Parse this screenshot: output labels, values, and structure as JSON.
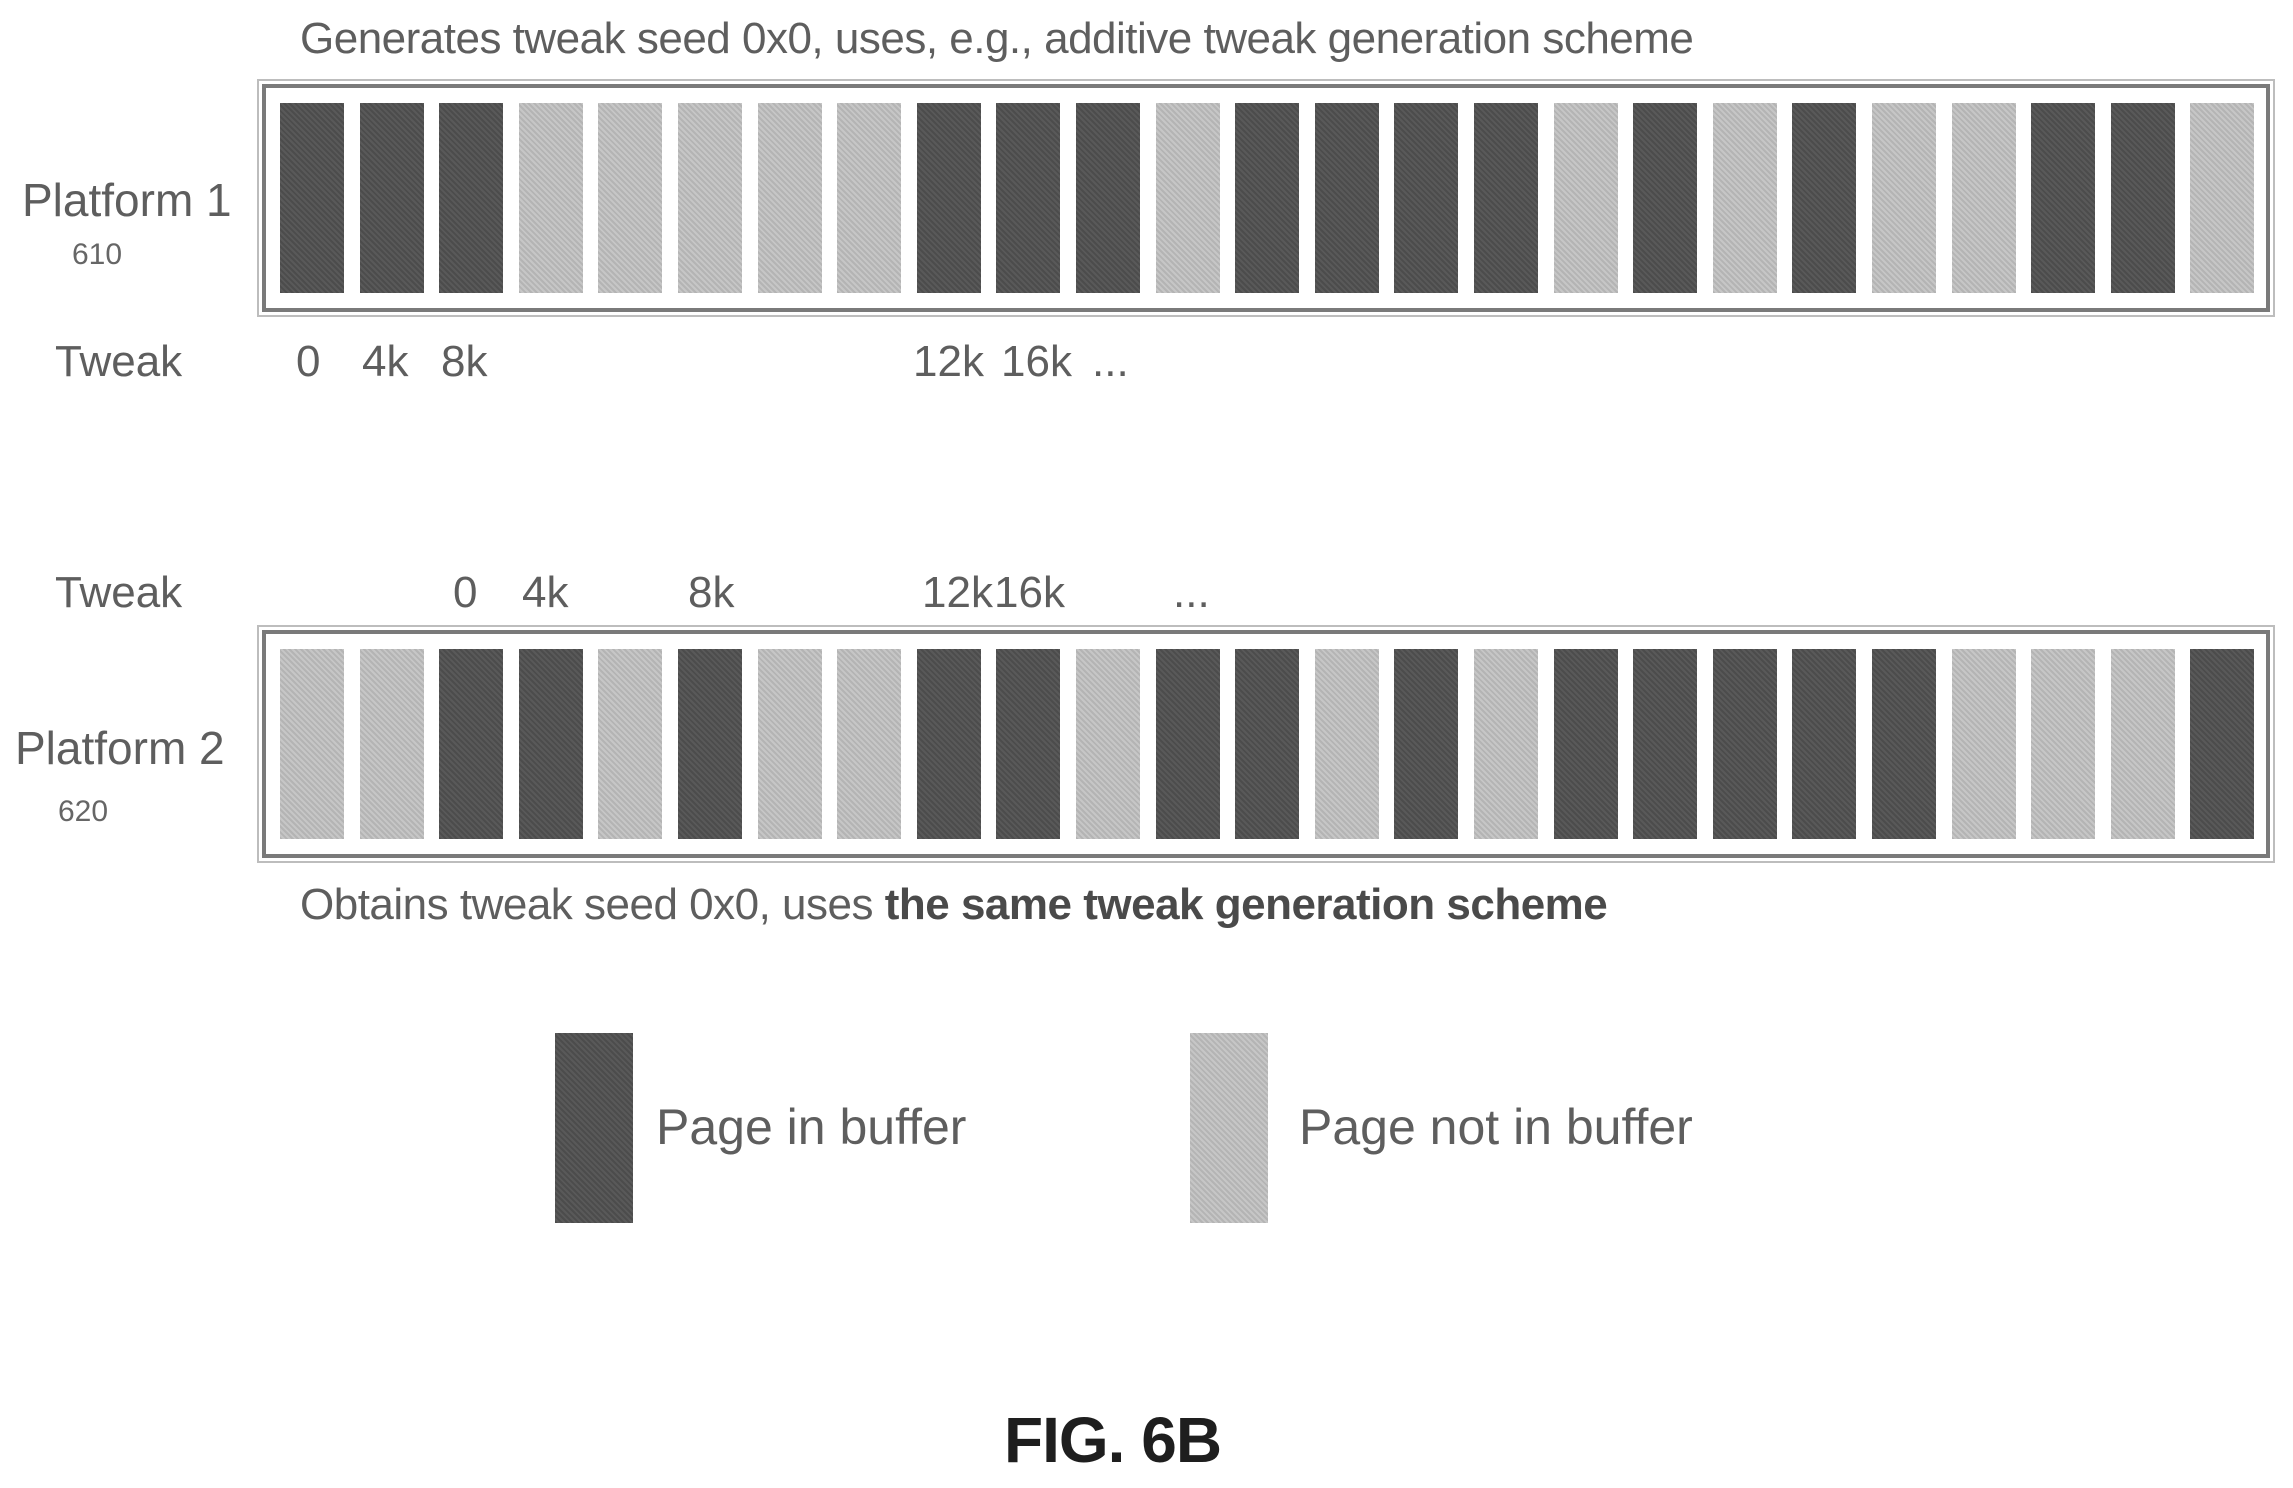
{
  "platform1": {
    "caption": "Generates tweak seed 0x0, uses, e.g., additive tweak generation scheme",
    "label": "Platform 1",
    "ref": "610",
    "tweak_label": "Tweak",
    "pages": [
      1,
      1,
      1,
      0,
      0,
      0,
      0,
      0,
      1,
      1,
      1,
      0,
      1,
      1,
      1,
      1,
      0,
      1,
      0,
      1,
      0,
      0,
      1,
      1,
      0
    ],
    "tweaks": [
      "0",
      "4k",
      "8k",
      "12k",
      "16k",
      "..."
    ]
  },
  "platform2": {
    "caption_prefix": "Obtains tweak seed 0x0, uses ",
    "caption_bold": "the same tweak generation scheme",
    "label": "Platform 2",
    "ref": "620",
    "tweak_label": "Tweak",
    "pages": [
      0,
      0,
      1,
      1,
      0,
      1,
      0,
      0,
      1,
      1,
      0,
      1,
      1,
      0,
      1,
      0,
      1,
      1,
      1,
      1,
      1,
      0,
      0,
      0,
      1
    ],
    "tweaks": [
      "0",
      "4k",
      "8k",
      "12k",
      "16k",
      "..."
    ]
  },
  "legend": {
    "in_buffer": "Page in buffer",
    "not_in_buffer": "Page not in buffer"
  },
  "figure_label": "FIG. 6B",
  "colors": {
    "page_in_buffer": "#525252",
    "page_not_in_buffer": "#bdbdbd",
    "frame": "#7a7a7a"
  }
}
